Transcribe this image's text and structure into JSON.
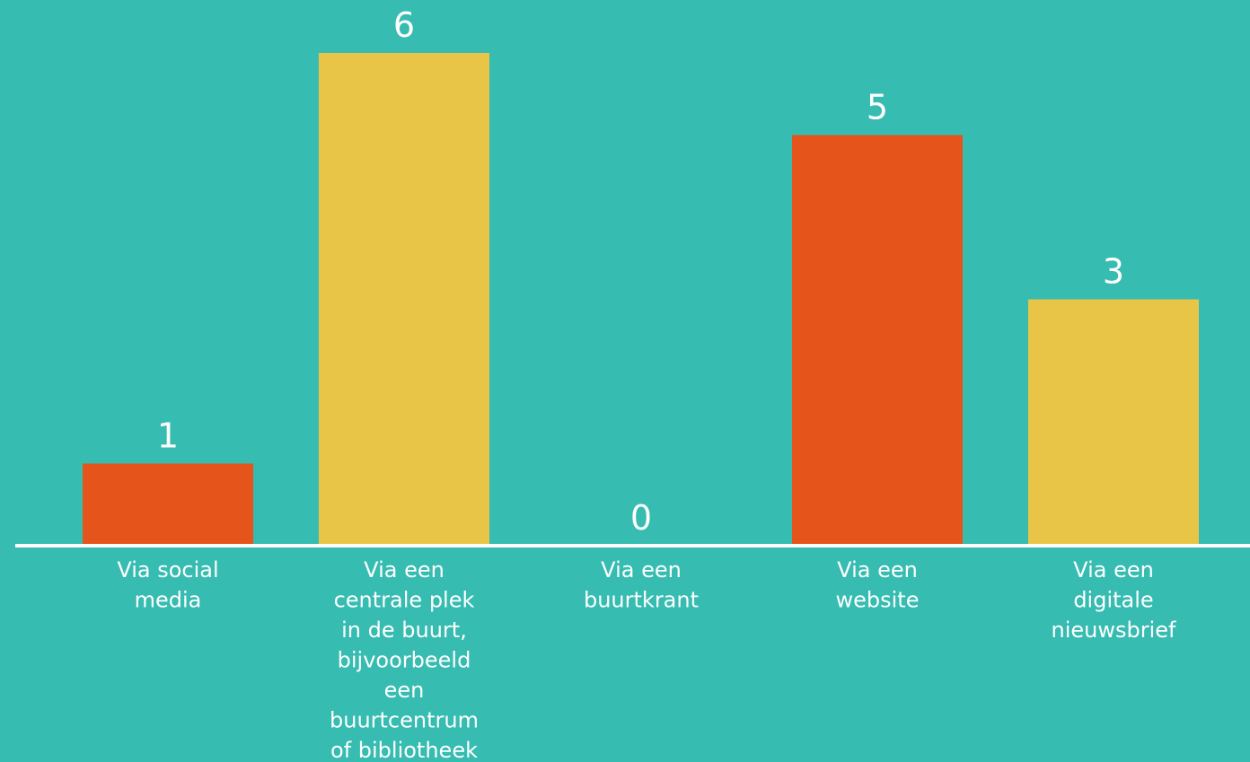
{
  "colors": {
    "background": "#36bcb1",
    "axis": "#ffffff",
    "label": "#ffffff",
    "orange": "#e5541b",
    "yellow": "#e9c547"
  },
  "chart_data": {
    "type": "bar",
    "title": "",
    "xlabel": "",
    "ylabel": "",
    "ylim": [
      0,
      6
    ],
    "grid": false,
    "legend": "none",
    "categories": [
      [
        "Via social",
        "media"
      ],
      [
        "Via een",
        "centrale plek",
        "in de buurt,",
        "bijvoorbeeld",
        "een",
        "buurtcentrum",
        "of bibliotheek"
      ],
      [
        "Via een",
        "buurtkrant"
      ],
      [
        "Via een",
        "website"
      ],
      [
        "Via een",
        "digitale",
        "nieuwsbrief"
      ]
    ],
    "values": [
      1,
      6,
      0,
      5,
      3
    ],
    "value_labels": [
      "1",
      "6",
      "0",
      "5",
      "3"
    ],
    "bar_colors": [
      "#e5541b",
      "#e9c547",
      "#e5541b",
      "#e5541b",
      "#e9c547"
    ]
  }
}
